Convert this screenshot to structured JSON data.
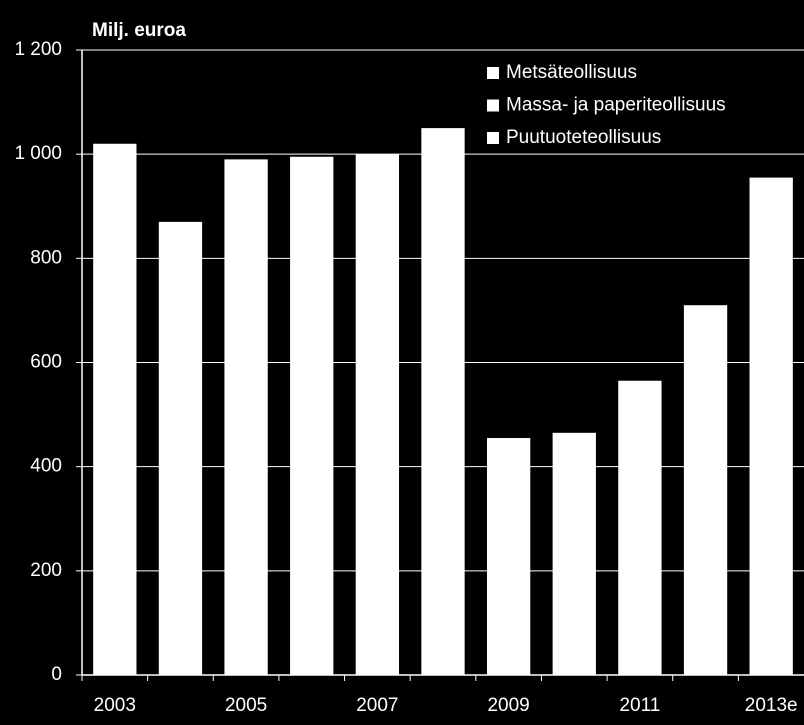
{
  "chart_data": {
    "type": "bar",
    "title": "Milj. euroa",
    "categories": [
      "2003",
      null,
      "2005",
      null,
      "2007",
      null,
      "2009",
      null,
      "2011",
      null,
      "2013e"
    ],
    "series": [
      {
        "name": "Metsäteollisuus",
        "color": "#ffffff",
        "values": [
          1020,
          870,
          990,
          995,
          1000,
          1050,
          455,
          465,
          565,
          710,
          955
        ]
      },
      {
        "name": "Massa- ja paperiteollisuus",
        "color": "#ffffff",
        "values": [
          null,
          null,
          null,
          null,
          null,
          null,
          null,
          null,
          null,
          null,
          null
        ]
      },
      {
        "name": "Puutuoteteollisuus",
        "color": "#ffffff",
        "values": [
          null,
          null,
          null,
          null,
          null,
          null,
          null,
          null,
          null,
          null,
          null
        ]
      }
    ],
    "ylim": [
      0,
      1200
    ],
    "yticks": [
      0,
      200,
      400,
      600,
      800,
      {
        "value": 1000,
        "label": "1 000"
      },
      {
        "value": 1200,
        "label": "1 200"
      }
    ],
    "grid": true,
    "legend": "upper right"
  }
}
